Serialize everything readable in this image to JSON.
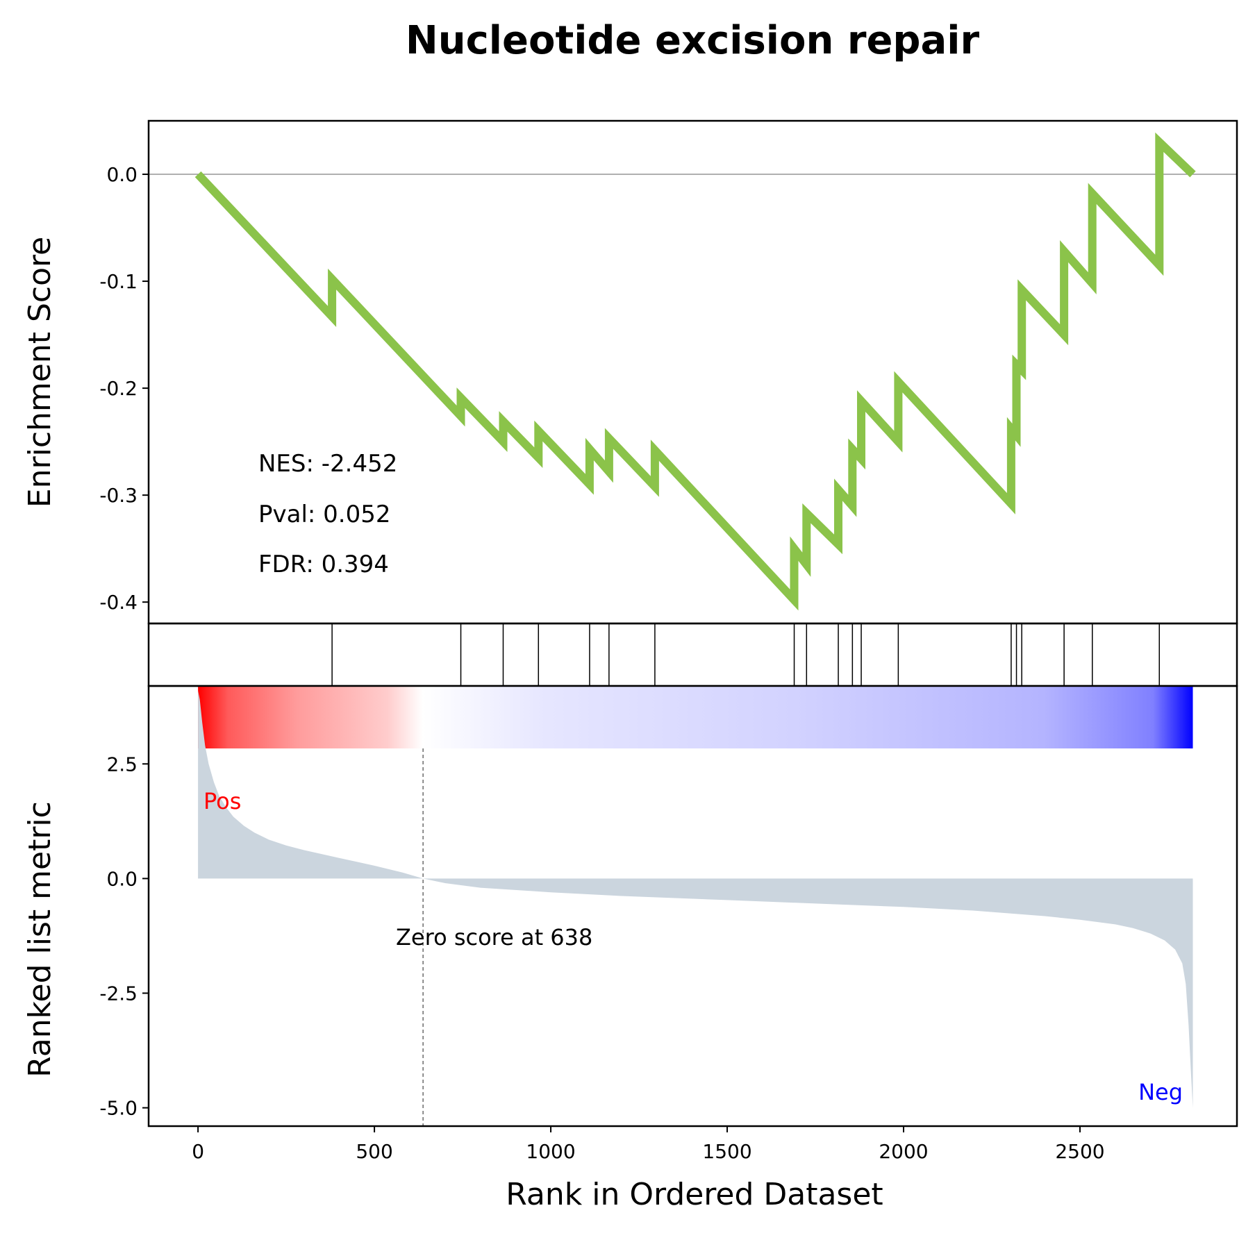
{
  "chart_data": {
    "type": "line",
    "title": "Nucleotide excision repair",
    "xlabel": "Rank in Ordered Dataset",
    "es_ylabel": "Enrichment Score",
    "metric_ylabel": "Ranked list metric",
    "xlim": [
      -140,
      2945
    ],
    "x_ticks": [
      0,
      500,
      1000,
      1500,
      2000,
      2500
    ],
    "x_tick_labels": [
      "0",
      "500",
      "1000",
      "1500",
      "2000",
      "2500"
    ],
    "es_ylim": [
      -0.42,
      0.05
    ],
    "es_ticks": [
      0.0,
      -0.1,
      -0.2,
      -0.3,
      -0.4
    ],
    "es_tick_labels": [
      "0.0",
      "-0.1",
      "-0.2",
      "-0.3",
      "-0.4"
    ],
    "metric_ylim": [
      -5.4,
      4.2
    ],
    "metric_ticks": [
      2.5,
      0.0,
      -2.5,
      -5.0
    ],
    "metric_tick_labels": [
      "2.5",
      "0.0",
      "-2.5",
      "-5.0"
    ],
    "stats": {
      "nes": "NES: -2.452",
      "pval": "Pval: 0.052",
      "fdr": "FDR: 0.394"
    },
    "hit_positions": [
      380,
      745,
      865,
      965,
      1110,
      1165,
      1295,
      1690,
      1725,
      1815,
      1855,
      1880,
      1985,
      2305,
      2320,
      2335,
      2455,
      2535,
      2725
    ],
    "running_es": {
      "x": [
        0,
        380,
        380,
        745,
        745,
        865,
        865,
        965,
        965,
        1110,
        1110,
        1165,
        1165,
        1295,
        1295,
        1690,
        1690,
        1725,
        1725,
        1815,
        1815,
        1855,
        1855,
        1880,
        1880,
        1985,
        1985,
        2305,
        2305,
        2320,
        2320,
        2335,
        2335,
        2455,
        2455,
        2535,
        2535,
        2725,
        2725,
        2820
      ],
      "y": [
        0.0,
        -0.133,
        -0.098,
        -0.226,
        -0.209,
        -0.25,
        -0.231,
        -0.265,
        -0.24,
        -0.29,
        -0.257,
        -0.278,
        -0.247,
        -0.292,
        -0.258,
        -0.398,
        -0.35,
        -0.365,
        -0.317,
        -0.346,
        -0.295,
        -0.31,
        -0.257,
        -0.266,
        -0.212,
        -0.25,
        -0.194,
        -0.308,
        -0.238,
        -0.244,
        -0.178,
        -0.183,
        -0.108,
        -0.15,
        -0.072,
        -0.102,
        -0.018,
        -0.085,
        0.03,
        0.0
      ]
    },
    "ranked_metric": {
      "x": [
        0,
        5,
        12,
        20,
        30,
        45,
        60,
        80,
        100,
        130,
        160,
        200,
        250,
        300,
        400,
        500,
        580,
        638,
        700,
        800,
        1000,
        1200,
        1500,
        1800,
        2000,
        2200,
        2400,
        2500,
        2600,
        2650,
        2700,
        2740,
        2770,
        2790,
        2800,
        2808,
        2815,
        2820
      ],
      "y": [
        4.1,
        3.9,
        3.4,
        2.9,
        2.5,
        2.1,
        1.8,
        1.55,
        1.35,
        1.15,
        1.0,
        0.85,
        0.72,
        0.62,
        0.45,
        0.28,
        0.13,
        0.0,
        -0.1,
        -0.2,
        -0.3,
        -0.38,
        -0.47,
        -0.56,
        -0.62,
        -0.7,
        -0.82,
        -0.9,
        -1.0,
        -1.08,
        -1.2,
        -1.35,
        -1.55,
        -1.85,
        -2.3,
        -3.2,
        -4.3,
        -5.0
      ]
    },
    "zero_cross": 638,
    "zero_label": "Zero score at 638",
    "pos_label": "Pos",
    "neg_label": "Neg",
    "colors": {
      "es_line": "#8bc34a",
      "metric_fill": "#cbd5de",
      "pos": "#ff0000",
      "neg": "#0000ff",
      "grid_line": "#808080"
    }
  }
}
